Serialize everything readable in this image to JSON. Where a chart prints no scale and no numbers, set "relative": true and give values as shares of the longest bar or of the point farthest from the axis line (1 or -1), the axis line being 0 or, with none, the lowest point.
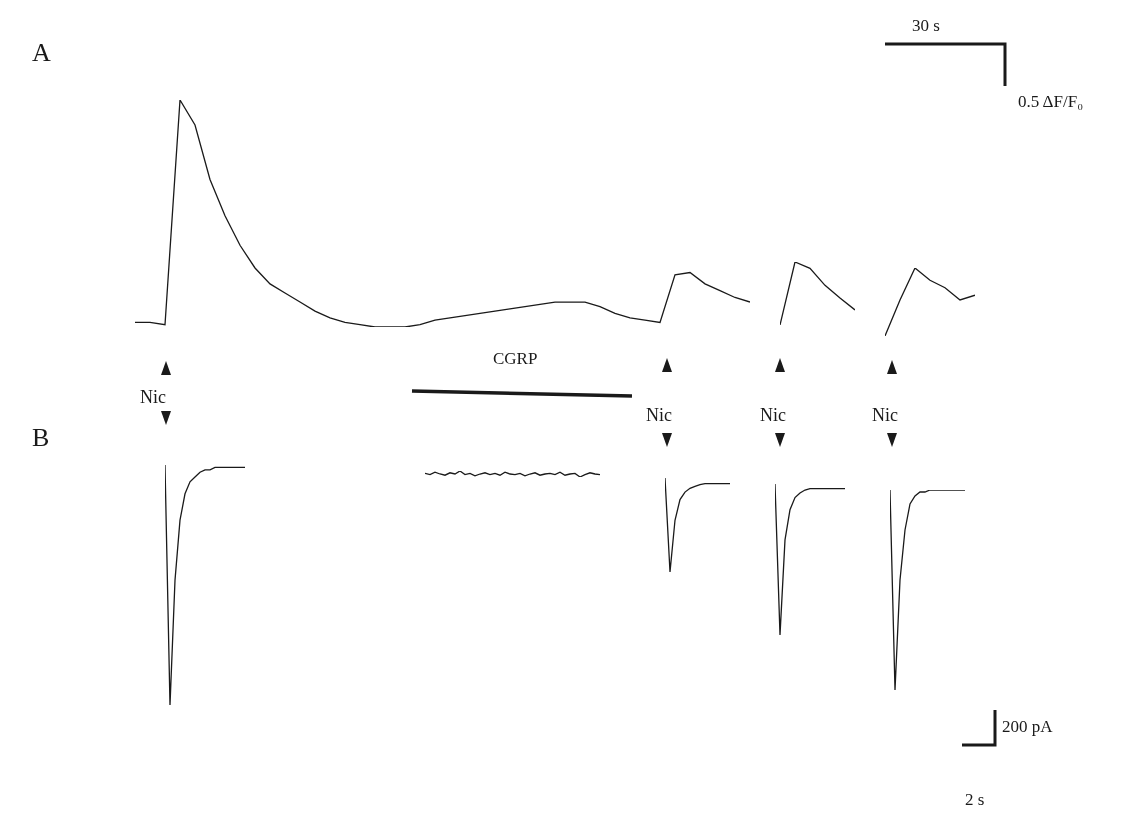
{
  "chart_data": [
    {
      "type": "line",
      "relative": true,
      "color": "#1a1a1a",
      "categories": [
        null,
        null,
        null,
        null,
        null,
        null,
        null,
        null,
        null,
        null,
        null,
        null,
        null,
        null,
        null,
        null,
        null,
        null,
        null,
        null,
        null,
        null,
        null,
        null,
        null,
        null,
        null,
        null,
        null,
        null,
        null,
        null,
        null,
        null,
        null,
        null,
        null,
        null,
        null,
        null,
        null,
        null
      ],
      "values": [
        0.02,
        0.02,
        0.01,
        1,
        0.89,
        0.65,
        0.49,
        0.36,
        0.26,
        0.19,
        0.15,
        0.11,
        0.07,
        0.04,
        0.02,
        0.01,
        0,
        0,
        0,
        0.01,
        0.03,
        0.04,
        0.05,
        0.06,
        0.07,
        0.08,
        0.09,
        0.1,
        0.11,
        0.11,
        0.11,
        0.09,
        0.06,
        0.04,
        0.03,
        0.02,
        0.23,
        0.24,
        0.19,
        0.16,
        0.13,
        0.11
      ],
      "annotations": [
        "A",
        "30 s",
        "0.5 ΔF/F₀",
        "Nic",
        "Nic",
        "Nic",
        "Nic",
        "CGRP"
      ]
    },
    {
      "type": "line",
      "relative": true,
      "color": "#1a1a1a",
      "categories": [
        null,
        null,
        null,
        null,
        null,
        null
      ],
      "values": [
        0,
        1,
        0.9,
        0.63,
        0.43,
        0.24
      ]
    },
    {
      "type": "line",
      "relative": true,
      "color": "#1a1a1a",
      "categories": [
        null,
        null,
        null,
        null,
        null,
        null,
        null
      ],
      "values": [
        0,
        0.53,
        1,
        0.82,
        0.71,
        0.53,
        0.6
      ]
    },
    {
      "type": "line",
      "relative": true,
      "color": "#1a1a1a",
      "categories": [
        null,
        null,
        null,
        null,
        null,
        null,
        null,
        null,
        null,
        null,
        null,
        null,
        null,
        null,
        null,
        null,
        null
      ],
      "values": [
        1,
        0,
        0.52,
        0.77,
        0.88,
        0.93,
        0.95,
        0.97,
        0.98,
        0.98,
        0.99,
        0.99,
        0.99,
        0.99,
        0.99,
        0.99,
        0.99
      ],
      "annotations": [
        "B",
        "200 pA",
        "2 s"
      ]
    },
    {
      "type": "line",
      "relative": true,
      "color": "#1a1a1a",
      "categories": [
        null,
        null,
        null,
        null,
        null,
        null,
        null,
        null,
        null,
        null,
        null,
        null,
        null,
        null,
        null,
        null,
        null,
        null,
        null,
        null,
        null,
        null,
        null,
        null,
        null,
        null,
        null,
        null,
        null,
        null,
        null,
        null,
        null,
        null,
        null,
        null
      ],
      "values": [
        0.6,
        0.4,
        0.8,
        0.5,
        0.3,
        0.7,
        0.5,
        1,
        0.4,
        0.6,
        0.2,
        0.5,
        0.7,
        0.4,
        0.6,
        0.3,
        0.8,
        0.5,
        0.4,
        0.6,
        0.2,
        0.5,
        0.7,
        0.3,
        0.5,
        0.6,
        0.4,
        0.8,
        0.3,
        0.5,
        0.6,
        0,
        0.4,
        0.7,
        0.5,
        0.4
      ]
    },
    {
      "type": "line",
      "relative": true,
      "color": "#1a1a1a",
      "categories": [
        null,
        null,
        null,
        null,
        null,
        null,
        null,
        null,
        null,
        null,
        null,
        null,
        null,
        null
      ],
      "values": [
        1,
        0,
        0.55,
        0.77,
        0.85,
        0.89,
        0.91,
        0.93,
        0.94,
        0.94,
        0.94,
        0.94,
        0.94,
        0.94
      ]
    },
    {
      "type": "line",
      "relative": true,
      "color": "#1a1a1a",
      "categories": [
        null,
        null,
        null,
        null,
        null,
        null,
        null,
        null,
        null,
        null,
        null,
        null,
        null,
        null,
        null
      ],
      "values": [
        1,
        0,
        0.63,
        0.83,
        0.91,
        0.94,
        0.96,
        0.97,
        0.97,
        0.97,
        0.97,
        0.97,
        0.97,
        0.97,
        0.97
      ]
    },
    {
      "type": "line",
      "relative": true,
      "color": "#1a1a1a",
      "categories": [
        null,
        null,
        null,
        null,
        null,
        null,
        null,
        null,
        null,
        null,
        null,
        null,
        null,
        null,
        null,
        null
      ],
      "values": [
        1,
        0,
        0.55,
        0.8,
        0.93,
        0.97,
        0.99,
        0.99,
        1,
        1,
        1,
        1,
        1,
        1,
        1,
        1
      ]
    }
  ]
}
